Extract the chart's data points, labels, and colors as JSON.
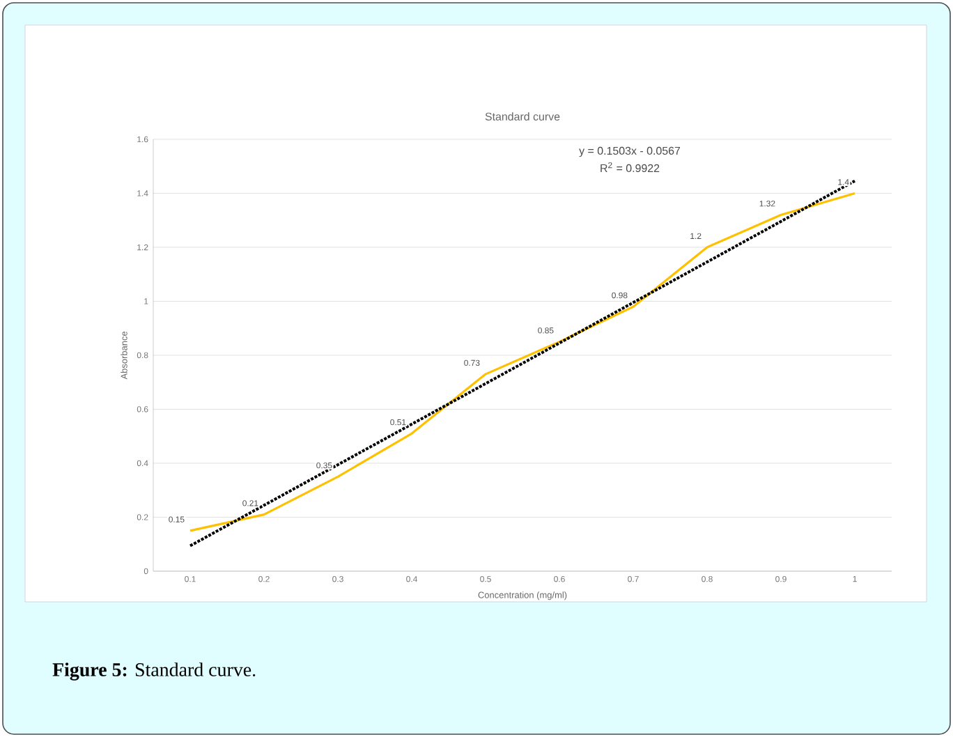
{
  "chart_data": {
    "type": "line",
    "title": "Standard curve",
    "xlabel": "Concentration (mg/ml)",
    "ylabel": "Absorbance",
    "x": [
      0.1,
      0.2,
      0.3,
      0.4,
      0.5,
      0.6,
      0.7,
      0.8,
      0.9,
      1
    ],
    "xlim": [
      0.05,
      1.05
    ],
    "xticks": [
      0.1,
      0.2,
      0.3,
      0.4,
      0.5,
      0.6,
      0.7,
      0.8,
      0.9,
      1
    ],
    "ylim": [
      0,
      1.6
    ],
    "yticks": [
      0,
      0.2,
      0.4,
      0.6,
      0.8,
      1,
      1.2,
      1.4,
      1.6
    ],
    "grid": "y",
    "marker": "none",
    "series": [
      {
        "color": "#ffc000",
        "values": [
          0.15,
          0.21,
          0.35,
          0.51,
          0.73,
          0.85,
          0.98,
          1.2,
          1.32,
          1.4
        ],
        "value_labels": [
          "0.15",
          "0.21",
          "0.35",
          "0.51",
          "0.73",
          "0.85",
          "0.98",
          "1.2",
          "1.32",
          "1.4"
        ]
      },
      {
        "type": "line",
        "color": "#000000",
        "line_style": "dotted",
        "x": [
          0.1,
          1
        ],
        "values": [
          0.094,
          1.446
        ]
      }
    ],
    "annotations": [
      "y = 0.1503x - 0.0567",
      "R$^{2}$ = 0.9922",
      "**Figure 5:** Standard curve."
    ]
  }
}
